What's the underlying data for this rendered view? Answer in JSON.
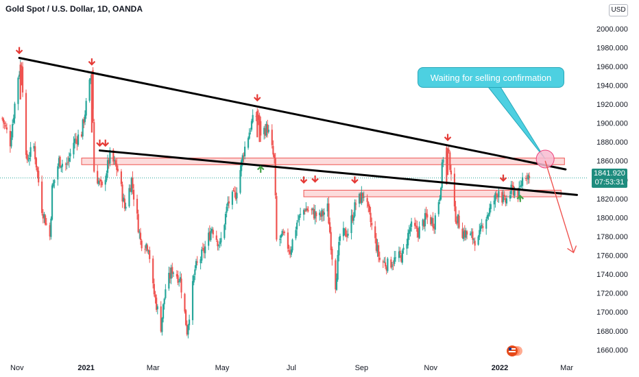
{
  "chart_data": {
    "type": "candlestick",
    "title": "Gold Spot / U.S. Dollar, 1D, OANDA",
    "currency": "USD",
    "y_ticks": [
      "2000.000",
      "1980.000",
      "1960.000",
      "1940.000",
      "1920.000",
      "1900.000",
      "1880.000",
      "1860.000",
      "1840.000",
      "1820.000",
      "1800.000",
      "1780.000",
      "1760.000",
      "1740.000",
      "1720.000",
      "1700.000",
      "1680.000",
      "1660.000"
    ],
    "ylim": [
      1653,
      2010
    ],
    "x_ticks": [
      {
        "label": "Nov",
        "date": "2020-11-01",
        "bold": false
      },
      {
        "label": "2021",
        "date": "2021-01-01",
        "bold": true
      },
      {
        "label": "Mar",
        "date": "2021-03-01",
        "bold": false
      },
      {
        "label": "May",
        "date": "2021-05-01",
        "bold": false
      },
      {
        "label": "Jul",
        "date": "2021-07-01",
        "bold": false
      },
      {
        "label": "Sep",
        "date": "2021-09-01",
        "bold": false
      },
      {
        "label": "Nov",
        "date": "2021-11-01",
        "bold": false
      },
      {
        "label": "2022",
        "date": "2022-01-01",
        "bold": true
      },
      {
        "label": "Mar",
        "date": "2022-03-01",
        "bold": false
      }
    ],
    "xlim": [
      "2020-10-17",
      "2022-03-20"
    ],
    "current_price": "1841.920",
    "countdown": "07:53:31",
    "price_path": [
      [
        "2020-10-19",
        1905
      ],
      [
        "2020-10-26",
        1880
      ],
      [
        "2020-11-02",
        1950
      ],
      [
        "2020-11-05",
        1965
      ],
      [
        "2020-11-09",
        1860
      ],
      [
        "2020-11-16",
        1875
      ],
      [
        "2020-11-23",
        1810
      ],
      [
        "2020-11-30",
        1780
      ],
      [
        "2020-12-02",
        1830
      ],
      [
        "2020-12-08",
        1860
      ],
      [
        "2020-12-15",
        1855
      ],
      [
        "2020-12-21",
        1880
      ],
      [
        "2020-12-28",
        1890
      ],
      [
        "2021-01-06",
        1955
      ],
      [
        "2021-01-08",
        1850
      ],
      [
        "2021-01-15",
        1830
      ],
      [
        "2021-01-22",
        1865
      ],
      [
        "2021-01-29",
        1850
      ],
      [
        "2021-02-04",
        1810
      ],
      [
        "2021-02-10",
        1840
      ],
      [
        "2021-02-18",
        1775
      ],
      [
        "2021-02-25",
        1770
      ],
      [
        "2021-03-01",
        1725
      ],
      [
        "2021-03-08",
        1685
      ],
      [
        "2021-03-12",
        1725
      ],
      [
        "2021-03-18",
        1745
      ],
      [
        "2021-03-25",
        1735
      ],
      [
        "2021-03-31",
        1680
      ],
      [
        "2021-04-07",
        1745
      ],
      [
        "2021-04-15",
        1765
      ],
      [
        "2021-04-22",
        1790
      ],
      [
        "2021-04-29",
        1770
      ],
      [
        "2021-05-06",
        1815
      ],
      [
        "2021-05-13",
        1825
      ],
      [
        "2021-05-20",
        1870
      ],
      [
        "2021-05-27",
        1900
      ],
      [
        "2021-06-01",
        1910
      ],
      [
        "2021-06-04",
        1890
      ],
      [
        "2021-06-10",
        1895
      ],
      [
        "2021-06-16",
        1860
      ],
      [
        "2021-06-18",
        1775
      ],
      [
        "2021-06-24",
        1780
      ],
      [
        "2021-06-30",
        1765
      ],
      [
        "2021-07-06",
        1795
      ],
      [
        "2021-07-13",
        1810
      ],
      [
        "2021-07-20",
        1805
      ],
      [
        "2021-07-26",
        1800
      ],
      [
        "2021-08-02",
        1810
      ],
      [
        "2021-08-06",
        1760
      ],
      [
        "2021-08-09",
        1730
      ],
      [
        "2021-08-13",
        1780
      ],
      [
        "2021-08-20",
        1785
      ],
      [
        "2021-08-27",
        1815
      ],
      [
        "2021-09-03",
        1825
      ],
      [
        "2021-09-10",
        1790
      ],
      [
        "2021-09-17",
        1755
      ],
      [
        "2021-09-24",
        1750
      ],
      [
        "2021-09-30",
        1755
      ],
      [
        "2021-10-07",
        1760
      ],
      [
        "2021-10-14",
        1790
      ],
      [
        "2021-10-21",
        1785
      ],
      [
        "2021-10-28",
        1800
      ],
      [
        "2021-11-04",
        1795
      ],
      [
        "2021-11-09",
        1825
      ],
      [
        "2021-11-12",
        1865
      ],
      [
        "2021-11-16",
        1870
      ],
      [
        "2021-11-19",
        1850
      ],
      [
        "2021-11-22",
        1805
      ],
      [
        "2021-11-29",
        1785
      ],
      [
        "2021-12-06",
        1780
      ],
      [
        "2021-12-13",
        1775
      ],
      [
        "2021-12-17",
        1795
      ],
      [
        "2021-12-24",
        1810
      ],
      [
        "2021-12-31",
        1830
      ],
      [
        "2022-01-05",
        1815
      ],
      [
        "2022-01-12",
        1830
      ],
      [
        "2022-01-18",
        1825
      ],
      [
        "2022-01-21",
        1842
      ],
      [
        "2022-01-25",
        1847
      ],
      [
        "2022-01-27",
        1841.92
      ]
    ],
    "highlighted_candles": [
      [
        "2020-11-04",
        1925,
        1965
      ],
      [
        "2020-11-05",
        1940,
        1960
      ],
      [
        "2021-01-06",
        1890,
        1955
      ],
      [
        "2021-01-07",
        1915,
        1959
      ],
      [
        "2021-06-01",
        1885,
        1916
      ],
      [
        "2021-06-03",
        1880,
        1911
      ],
      [
        "2021-11-15",
        1835,
        1877
      ],
      [
        "2021-11-16",
        1845,
        1874
      ]
    ],
    "ticks_lines": [
      {
        "from": [
          "2020-11-03",
          1969
        ],
        "to": [
          "2022-02-28",
          1851
        ]
      },
      {
        "from": [
          "2021-01-13",
          1871
        ],
        "to": [
          "2022-03-10",
          1824
        ]
      }
    ],
    "zones": [
      {
        "from": "2020-12-28",
        "to": "2022-02-27",
        "low": 1856,
        "high": 1863
      },
      {
        "from": "2021-07-12",
        "to": "2022-02-24",
        "low": 1822,
        "high": 1829
      }
    ],
    "marker_arrows": [
      {
        "date": "2020-11-03",
        "price": 1974,
        "dir": "down"
      },
      {
        "date": "2021-01-06",
        "price": 1962,
        "dir": "down"
      },
      {
        "date": "2021-01-13",
        "price": 1876,
        "dir": "down"
      },
      {
        "date": "2021-01-18",
        "price": 1876,
        "dir": "down"
      },
      {
        "date": "2021-06-01",
        "price": 1924,
        "dir": "down"
      },
      {
        "date": "2021-06-04",
        "price": 1854,
        "dir": "up"
      },
      {
        "date": "2021-07-12",
        "price": 1837,
        "dir": "down"
      },
      {
        "date": "2021-07-22",
        "price": 1838,
        "dir": "down"
      },
      {
        "date": "2021-08-26",
        "price": 1837,
        "dir": "down"
      },
      {
        "date": "2021-11-16",
        "price": 1882,
        "dir": "down"
      },
      {
        "date": "2022-01-04",
        "price": 1839,
        "dir": "down"
      },
      {
        "date": "2022-01-19",
        "price": 1823,
        "dir": "up"
      }
    ],
    "callout": {
      "text": "Waiting for selling confirmation",
      "anchor": [
        "2022-02-10",
        1862
      ]
    },
    "projection": {
      "from": [
        "2022-02-10",
        1860
      ],
      "to": [
        "2022-03-07",
        1763
      ]
    }
  },
  "colors": {
    "bull": "#26a69a",
    "bear": "#ef5350",
    "marker_down": "#e53935",
    "marker_up": "#43a047",
    "trendline": "#000000",
    "zone_fill": "#fbd0d0",
    "zone_border": "#ef5350",
    "callout": "#4dd0e1",
    "projection": "#ef5350",
    "circle": "#f8bbd0",
    "price_line": "#26a69a"
  }
}
